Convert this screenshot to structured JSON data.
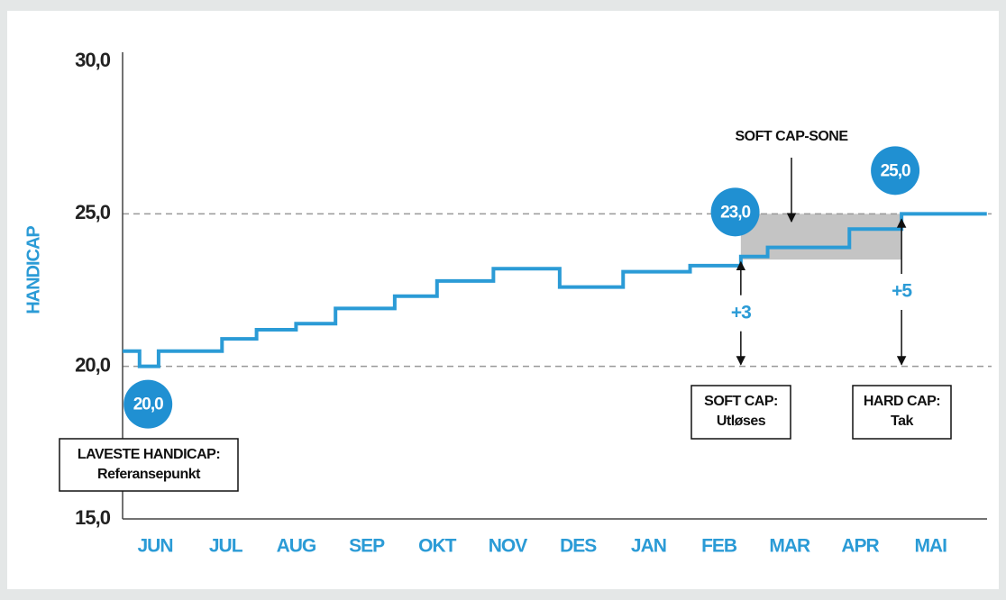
{
  "chart_data": {
    "type": "step",
    "y_label": "HANDICAP",
    "categories": [
      "JUN",
      "JUL",
      "AUG",
      "SEP",
      "OKT",
      "NOV",
      "DES",
      "JAN",
      "FEB",
      "MAR",
      "APR",
      "MAI"
    ],
    "xlim": [
      -0.46,
      11.9
    ],
    "ylim": [
      15,
      30
    ],
    "yticks": [
      {
        "value": 15,
        "label": "15,0"
      },
      {
        "value": 20,
        "label": "20,0"
      },
      {
        "value": 25,
        "label": "25,0"
      },
      {
        "value": 30,
        "label": "30,0"
      }
    ],
    "dashed_lines": [
      20,
      25
    ],
    "series": [
      {
        "name": "Handicap",
        "color": "#2b9bd6",
        "x": [
          -0.46,
          -0.22,
          0.05,
          0.95,
          1.44,
          2.0,
          2.56,
          3.4,
          4.0,
          4.8,
          5.74,
          6.64,
          7.59,
          8.31,
          8.69,
          9.85,
          10.59,
          11.8
        ],
        "values": [
          20.5,
          20.0,
          20.5,
          20.9,
          21.2,
          21.4,
          21.9,
          22.3,
          22.8,
          23.2,
          22.6,
          23.1,
          23.3,
          23.6,
          23.9,
          24.5,
          25.0,
          25.0
        ]
      }
    ],
    "zone": {
      "label": "SOFT CAP-SONE",
      "x": [
        8.31,
        10.59
      ],
      "y": [
        23.5,
        25.0
      ],
      "color": "#c4c4c4"
    },
    "bubbles": [
      {
        "label": "20,0",
        "x": -0.1,
        "y": 20.0
      },
      {
        "label": "23,0",
        "x": 8.23,
        "y": 25.0
      },
      {
        "label": "25,0",
        "x": 10.5,
        "y": 25.0
      }
    ],
    "arrows": [
      {
        "label": "+3",
        "x": 8.31,
        "from": 23.6,
        "to": 20.0
      },
      {
        "label": "+5",
        "x": 10.59,
        "from": 25.0,
        "to": 20.0
      }
    ],
    "boxes": [
      {
        "lines": [
          "LAVESTE HANDICAP:",
          "Referansepunkt"
        ]
      },
      {
        "lines": [
          "SOFT CAP:",
          "Utløses"
        ]
      },
      {
        "lines": [
          "HARD CAP:",
          "Tak"
        ]
      }
    ]
  }
}
